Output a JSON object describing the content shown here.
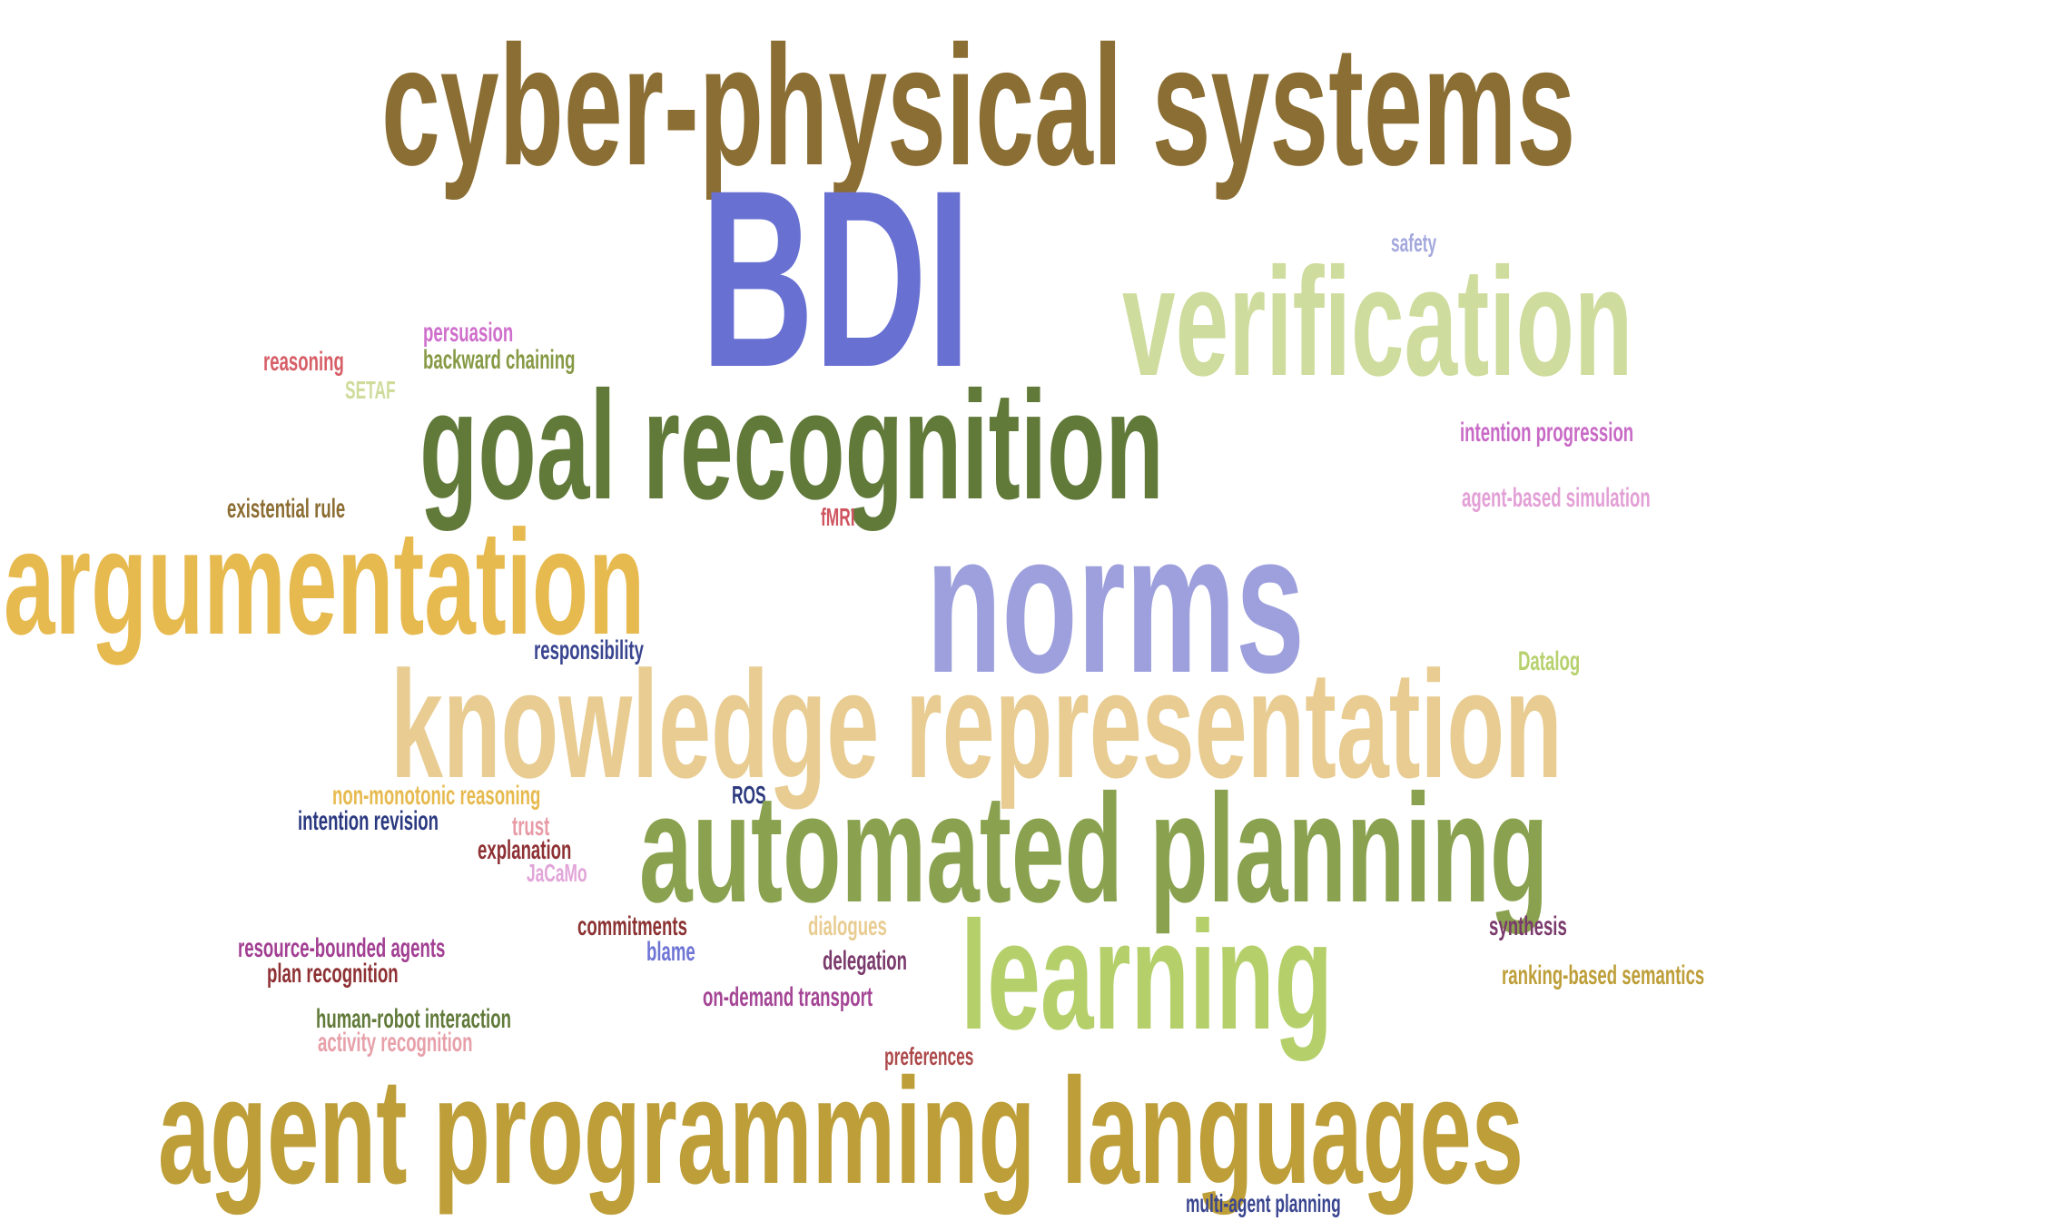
{
  "words": [
    {
      "key": "cyber_physical_systems",
      "text": "cyber-physical systems",
      "color": "#8b6e33"
    },
    {
      "key": "bdi",
      "text": "BDI",
      "color": "#6870d2"
    },
    {
      "key": "verification",
      "text": "verification",
      "color": "#cedc9d"
    },
    {
      "key": "safety",
      "text": "safety",
      "color": "#a3a8dd"
    },
    {
      "key": "persuasion",
      "text": "persuasion",
      "color": "#cf6fcc"
    },
    {
      "key": "reasoning",
      "text": "reasoning",
      "color": "#d65f68"
    },
    {
      "key": "backward_chaining",
      "text": "backward chaining",
      "color": "#869a45"
    },
    {
      "key": "setaf",
      "text": "SETAF",
      "color": "#cfdc9b"
    },
    {
      "key": "goal_recognition",
      "text": "goal recognition",
      "color": "#617a3a"
    },
    {
      "key": "intention_progression",
      "text": "intention progression",
      "color": "#c86ac6"
    },
    {
      "key": "existential_rule",
      "text": "existential rule",
      "color": "#8c6d33"
    },
    {
      "key": "fmri",
      "text": "fMRI",
      "color": "#cf5560"
    },
    {
      "key": "agent_based_simulation",
      "text": "agent-based simulation",
      "color": "#e3a0d6"
    },
    {
      "key": "argumentation",
      "text": "argumentation",
      "color": "#e7ba4f"
    },
    {
      "key": "norms",
      "text": "norms",
      "color": "#9da0dc"
    },
    {
      "key": "responsibility",
      "text": "responsibility",
      "color": "#3a4590"
    },
    {
      "key": "datalog",
      "text": "Datalog",
      "color": "#b6d16d"
    },
    {
      "key": "knowledge_representation",
      "text": "knowledge representation",
      "color": "#e8cc92"
    },
    {
      "key": "non_monotonic_reasoning",
      "text": "non-monotonic reasoning",
      "color": "#e7ba4f"
    },
    {
      "key": "ros",
      "text": "ROS",
      "color": "#2c3a7e"
    },
    {
      "key": "intention_revision",
      "text": "intention revision",
      "color": "#2b3a80"
    },
    {
      "key": "trust",
      "text": "trust",
      "color": "#e89ba6"
    },
    {
      "key": "automated_planning",
      "text": "automated planning",
      "color": "#8aa24f"
    },
    {
      "key": "explanation",
      "text": "explanation",
      "color": "#8e3134"
    },
    {
      "key": "jacamo",
      "text": "JaCaMo",
      "color": "#e2a5d9"
    },
    {
      "key": "commitments",
      "text": "commitments",
      "color": "#8c3232"
    },
    {
      "key": "dialogues",
      "text": "dialogues",
      "color": "#e8cc91"
    },
    {
      "key": "synthesis",
      "text": "synthesis",
      "color": "#7a3a6c"
    },
    {
      "key": "resource_bounded_agents",
      "text": "resource-bounded agents",
      "color": "#a23f92"
    },
    {
      "key": "blame",
      "text": "blame",
      "color": "#6e75d4"
    },
    {
      "key": "learning",
      "text": "learning",
      "color": "#b5d06b"
    },
    {
      "key": "delegation",
      "text": "delegation",
      "color": "#7a3a6c"
    },
    {
      "key": "plan_recognition",
      "text": "plan recognition",
      "color": "#8e3134"
    },
    {
      "key": "ranking_based_semantics",
      "text": "ranking-based semantics",
      "color": "#bd9e38"
    },
    {
      "key": "on_demand_transport",
      "text": "on-demand transport",
      "color": "#a44595"
    },
    {
      "key": "human_robot_interaction",
      "text": "human-robot interaction",
      "color": "#617a3a"
    },
    {
      "key": "activity_recognition",
      "text": "activity recognition",
      "color": "#e7a0a9"
    },
    {
      "key": "preferences",
      "text": "preferences",
      "color": "#ad4a4c"
    },
    {
      "key": "agent_programming_languages",
      "text": "agent programming languages",
      "color": "#bd9e38"
    },
    {
      "key": "multi_agent_planning",
      "text": "multi-agent planning",
      "color": "#3a4590"
    }
  ]
}
